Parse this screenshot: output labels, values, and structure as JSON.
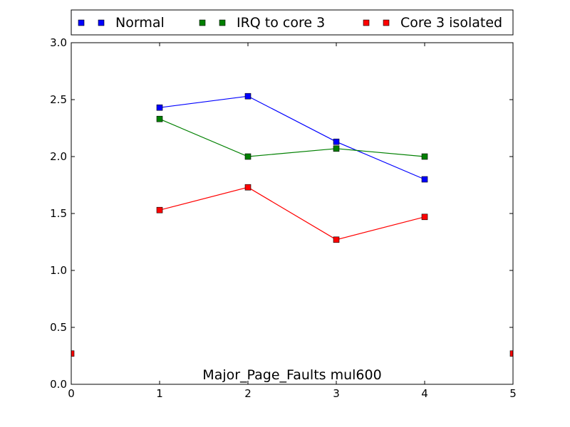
{
  "chart_data": {
    "type": "line",
    "title": "Major_Page_Faults mul600",
    "xlabel": "",
    "ylabel": "",
    "xlim": [
      0,
      5
    ],
    "ylim": [
      0,
      3.0
    ],
    "xticks": [
      "0",
      "1",
      "2",
      "3",
      "4",
      "5"
    ],
    "yticks": [
      "0.0",
      "0.5",
      "1.0",
      "1.5",
      "2.0",
      "2.5",
      "3.0"
    ],
    "grid": false,
    "legend_position": "top",
    "series": [
      {
        "name": "Normal",
        "color": "#0000ff",
        "x": [
          1,
          2,
          3,
          4
        ],
        "y": [
          2.43,
          2.53,
          2.13,
          1.8
        ]
      },
      {
        "name": "IRQ to core 3",
        "color": "#008000",
        "x": [
          1,
          2,
          3,
          4
        ],
        "y": [
          2.33,
          2.0,
          2.07,
          2.0
        ]
      },
      {
        "name": "Core 3 isolated",
        "color": "#ff0000",
        "x": [
          1,
          2,
          3,
          4
        ],
        "y": [
          1.53,
          1.73,
          1.27,
          1.47
        ]
      }
    ],
    "extra_points": [
      {
        "series": "Core 3 isolated",
        "x": 0,
        "y": 0.27
      },
      {
        "series": "Core 3 isolated",
        "x": 5,
        "y": 0.27
      }
    ]
  }
}
